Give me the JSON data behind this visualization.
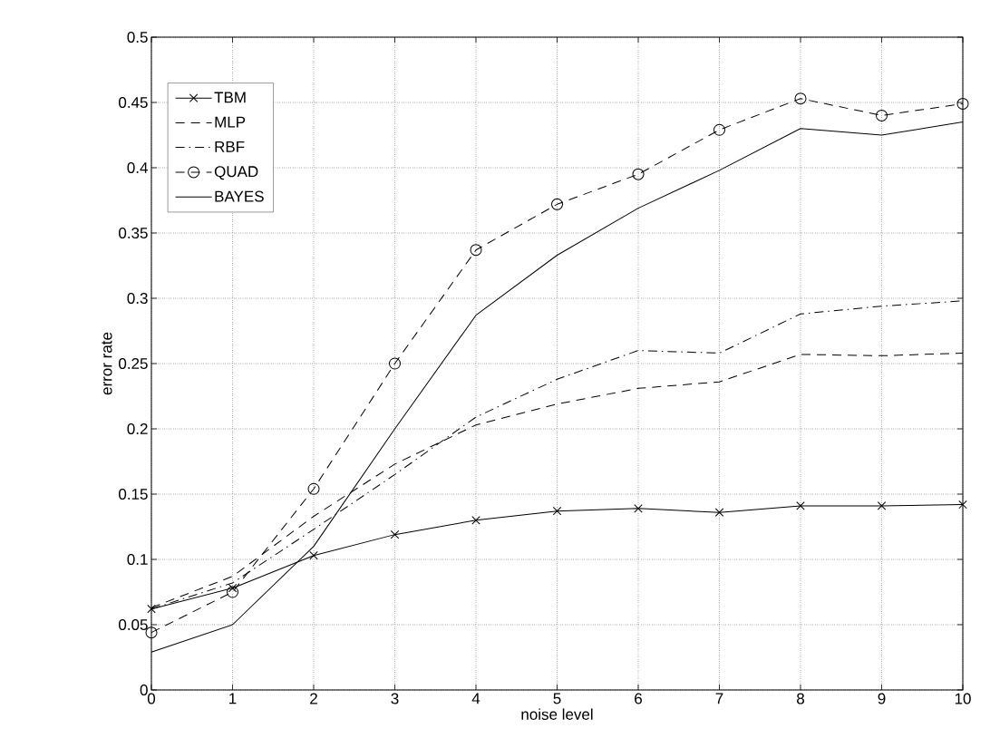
{
  "chart_data": {
    "type": "line",
    "xlabel": "noise level",
    "ylabel": "error rate",
    "x": [
      0,
      1,
      2,
      3,
      4,
      5,
      6,
      7,
      8,
      9,
      10
    ],
    "series": [
      {
        "name": "TBM",
        "color": "#000000",
        "line_style": "solid",
        "marker": "cross",
        "values": [
          0.062,
          0.078,
          0.103,
          0.119,
          0.13,
          0.137,
          0.139,
          0.136,
          0.141,
          0.141,
          0.142
        ]
      },
      {
        "name": "MLP",
        "color": "#000000",
        "line_style": "dashed",
        "marker": "none",
        "values": [
          0.063,
          0.087,
          0.133,
          0.173,
          0.203,
          0.219,
          0.231,
          0.236,
          0.257,
          0.256,
          0.258
        ]
      },
      {
        "name": "RBF",
        "color": "#000000",
        "line_style": "dashdot",
        "marker": "none",
        "values": [
          0.062,
          0.082,
          0.123,
          0.165,
          0.209,
          0.238,
          0.26,
          0.258,
          0.288,
          0.294,
          0.298
        ]
      },
      {
        "name": "QUAD",
        "color": "#000000",
        "line_style": "dashed",
        "marker": "circle",
        "values": [
          0.044,
          0.075,
          0.154,
          0.25,
          0.337,
          0.372,
          0.395,
          0.429,
          0.453,
          0.44,
          0.449
        ]
      },
      {
        "name": "BAYES",
        "color": "#000000",
        "line_style": "solid",
        "marker": "none",
        "values": [
          0.029,
          0.05,
          0.11,
          0.2,
          0.287,
          0.333,
          0.369,
          0.398,
          0.43,
          0.425,
          0.435
        ]
      }
    ],
    "xlim": [
      0,
      10
    ],
    "ylim": [
      0,
      0.5
    ],
    "xticks": [
      0,
      1,
      2,
      3,
      4,
      5,
      6,
      7,
      8,
      9,
      10
    ],
    "yticks": [
      0,
      0.05,
      0.1,
      0.15,
      0.2,
      0.25,
      0.3,
      0.35,
      0.4,
      0.45,
      0.5
    ],
    "grid": true,
    "legend": "top left"
  }
}
